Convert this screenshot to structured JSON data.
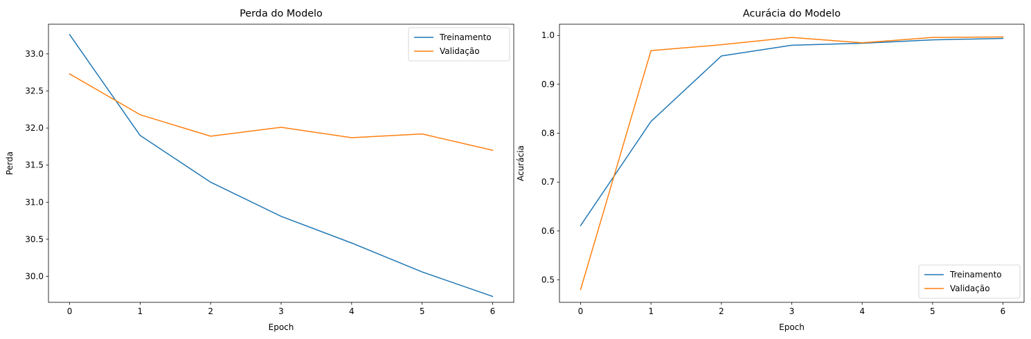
{
  "chart_data": [
    {
      "type": "line",
      "title": "Perda do Modelo",
      "xlabel": "Epoch",
      "ylabel": "Perda",
      "x": [
        0,
        1,
        2,
        3,
        4,
        5,
        6
      ],
      "xlim": [
        -0.3,
        6.3
      ],
      "ylim": [
        29.65,
        33.4
      ],
      "xticks": [
        0,
        1,
        2,
        3,
        4,
        5,
        6
      ],
      "yticks": [
        30.0,
        30.5,
        31.0,
        31.5,
        32.0,
        32.5,
        33.0
      ],
      "ytick_format": 1,
      "legend_position": "top-right",
      "grid": false,
      "series": [
        {
          "name": "Treinamento",
          "color": "#1f77b4",
          "values": [
            33.26,
            31.9,
            31.27,
            30.81,
            30.45,
            30.06,
            29.73
          ]
        },
        {
          "name": "Validação",
          "color": "#ff7f0e",
          "values": [
            32.73,
            32.18,
            31.89,
            32.01,
            31.87,
            31.92,
            31.7
          ]
        }
      ]
    },
    {
      "type": "line",
      "title": "Acurácia do Modelo",
      "xlabel": "Epoch",
      "ylabel": "Acurácia",
      "x": [
        0,
        1,
        2,
        3,
        4,
        5,
        6
      ],
      "xlim": [
        -0.3,
        6.3
      ],
      "ylim": [
        0.454,
        1.023
      ],
      "xticks": [
        0,
        1,
        2,
        3,
        4,
        5,
        6
      ],
      "yticks": [
        0.5,
        0.6,
        0.7,
        0.8,
        0.9,
        1.0
      ],
      "ytick_format": 1,
      "legend_position": "bottom-right",
      "grid": false,
      "series": [
        {
          "name": "Treinamento",
          "color": "#1f77b4",
          "values": [
            0.611,
            0.824,
            0.958,
            0.98,
            0.984,
            0.991,
            0.994
          ]
        },
        {
          "name": "Validação",
          "color": "#ff7f0e",
          "values": [
            0.48,
            0.969,
            0.981,
            0.996,
            0.985,
            0.996,
            0.997
          ]
        }
      ]
    }
  ]
}
